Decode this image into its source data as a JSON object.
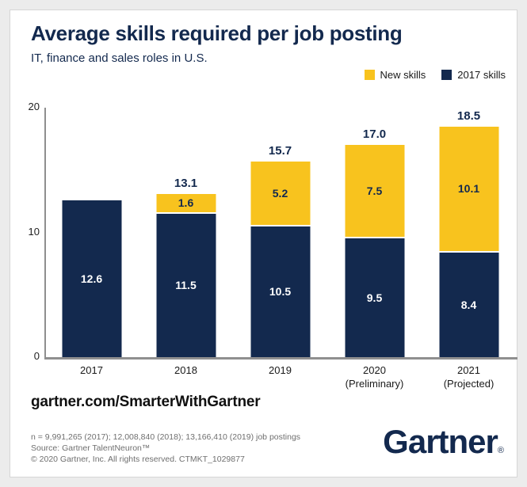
{
  "header": {
    "title": "Average skills required per job posting",
    "subtitle": "IT, finance and sales roles in U.S."
  },
  "legend": {
    "items": [
      {
        "label": "New skills",
        "color": "#F8C31E"
      },
      {
        "label": "2017 skills",
        "color": "#13294E"
      }
    ]
  },
  "chart_data": {
    "type": "bar",
    "stacked": true,
    "title": "Average skills required per job posting",
    "subtitle": "IT, finance and sales roles in U.S.",
    "categories": [
      {
        "label": "2017",
        "sublabel": ""
      },
      {
        "label": "2018",
        "sublabel": ""
      },
      {
        "label": "2019",
        "sublabel": ""
      },
      {
        "label": "2020",
        "sublabel": "(Preliminary)"
      },
      {
        "label": "2021",
        "sublabel": "(Projected)"
      }
    ],
    "series": [
      {
        "name": "2017 skills",
        "color": "#13294E",
        "label_color": "#ffffff",
        "values": [
          12.6,
          11.5,
          10.5,
          9.5,
          8.4
        ],
        "labels": [
          "12.6",
          "11.5",
          "10.5",
          "9.5",
          "8.4"
        ]
      },
      {
        "name": "New skills",
        "color": "#F8C31E",
        "label_color": "#13294E",
        "values": [
          0,
          1.6,
          5.2,
          7.5,
          10.1
        ],
        "labels": [
          "",
          "1.6",
          "5.2",
          "7.5",
          "10.1"
        ]
      }
    ],
    "totals": [
      12.6,
      13.1,
      15.7,
      17.0,
      18.5
    ],
    "total_labels": [
      "",
      "13.1",
      "15.7",
      "17.0",
      "18.5"
    ],
    "ylim": [
      0,
      20
    ],
    "yticks": [
      "0",
      "10",
      "20"
    ],
    "grid": false,
    "legend_position": "top-right"
  },
  "footer": {
    "url": "gartner.com/SmarterWithGartner",
    "note_lines": [
      "n = 9,991,265 (2017); 12,008,840 (2018); 13,166,410 (2019) job postings",
      "Source: Gartner TalentNeuron™",
      "© 2020 Gartner, Inc. All rights reserved. CTMKT_1029877"
    ],
    "logo_text": "Gartner",
    "logo_mark": "®"
  },
  "colors": {
    "brand_navy": "#13294E",
    "brand_gold": "#F8C31E",
    "axis_gray": "#8f8f8f",
    "note_gray": "#6f6f6f",
    "canvas_bg": "#ececec",
    "card_bg": "#ffffff"
  }
}
